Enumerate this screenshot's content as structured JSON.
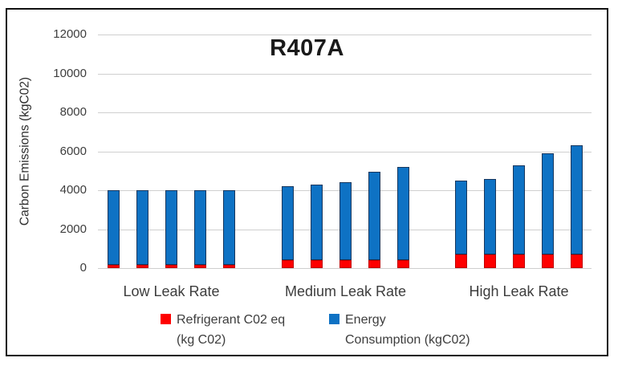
{
  "title": "R407A",
  "y_axis": {
    "label": "Carbon Emissions (kgC02)",
    "ticks": [
      0,
      2000,
      4000,
      6000,
      8000,
      10000,
      12000
    ]
  },
  "legend": {
    "items": [
      {
        "name": "refrigerant",
        "line1": "Refrigerant C02 eq",
        "line2": "(kg C02)",
        "color": "#fe0000"
      },
      {
        "name": "energy",
        "line1": "Energy",
        "line2": "Consumption (kgC02)",
        "color": "#0e72c4"
      }
    ]
  },
  "chart_data": {
    "type": "bar",
    "stacked": true,
    "title": "R407A",
    "ylabel": "Carbon Emissions (kgC02)",
    "ylim": [
      0,
      12000
    ],
    "yticks": [
      0,
      2000,
      4000,
      6000,
      8000,
      10000,
      12000
    ],
    "grid": true,
    "legend_position": "bottom",
    "categories": [
      "Low Leak Rate",
      "Medium Leak Rate",
      "High Leak Rate"
    ],
    "bars_per_category": 5,
    "series": [
      {
        "name": "Refrigerant C02 eq (kg C02)",
        "color": "#fe0000",
        "border_color": "#c00000",
        "values": [
          [
            150,
            150,
            150,
            150,
            150
          ],
          [
            400,
            400,
            400,
            400,
            400
          ],
          [
            700,
            700,
            700,
            700,
            700
          ]
        ]
      },
      {
        "name": "Energy Consumption (kgC02)",
        "color": "#0e72c4",
        "border_color": "#17375e",
        "values": [
          [
            3850,
            3850,
            3850,
            3850,
            3850
          ],
          [
            3800,
            3900,
            4000,
            4550,
            4800
          ],
          [
            3800,
            3900,
            4600,
            5200,
            5600
          ]
        ]
      }
    ],
    "stacked_totals": [
      [
        4000,
        4000,
        4000,
        4000,
        4000
      ],
      [
        4200,
        4300,
        4400,
        4950,
        5200
      ],
      [
        4500,
        4600,
        5300,
        5900,
        6300
      ]
    ]
  }
}
